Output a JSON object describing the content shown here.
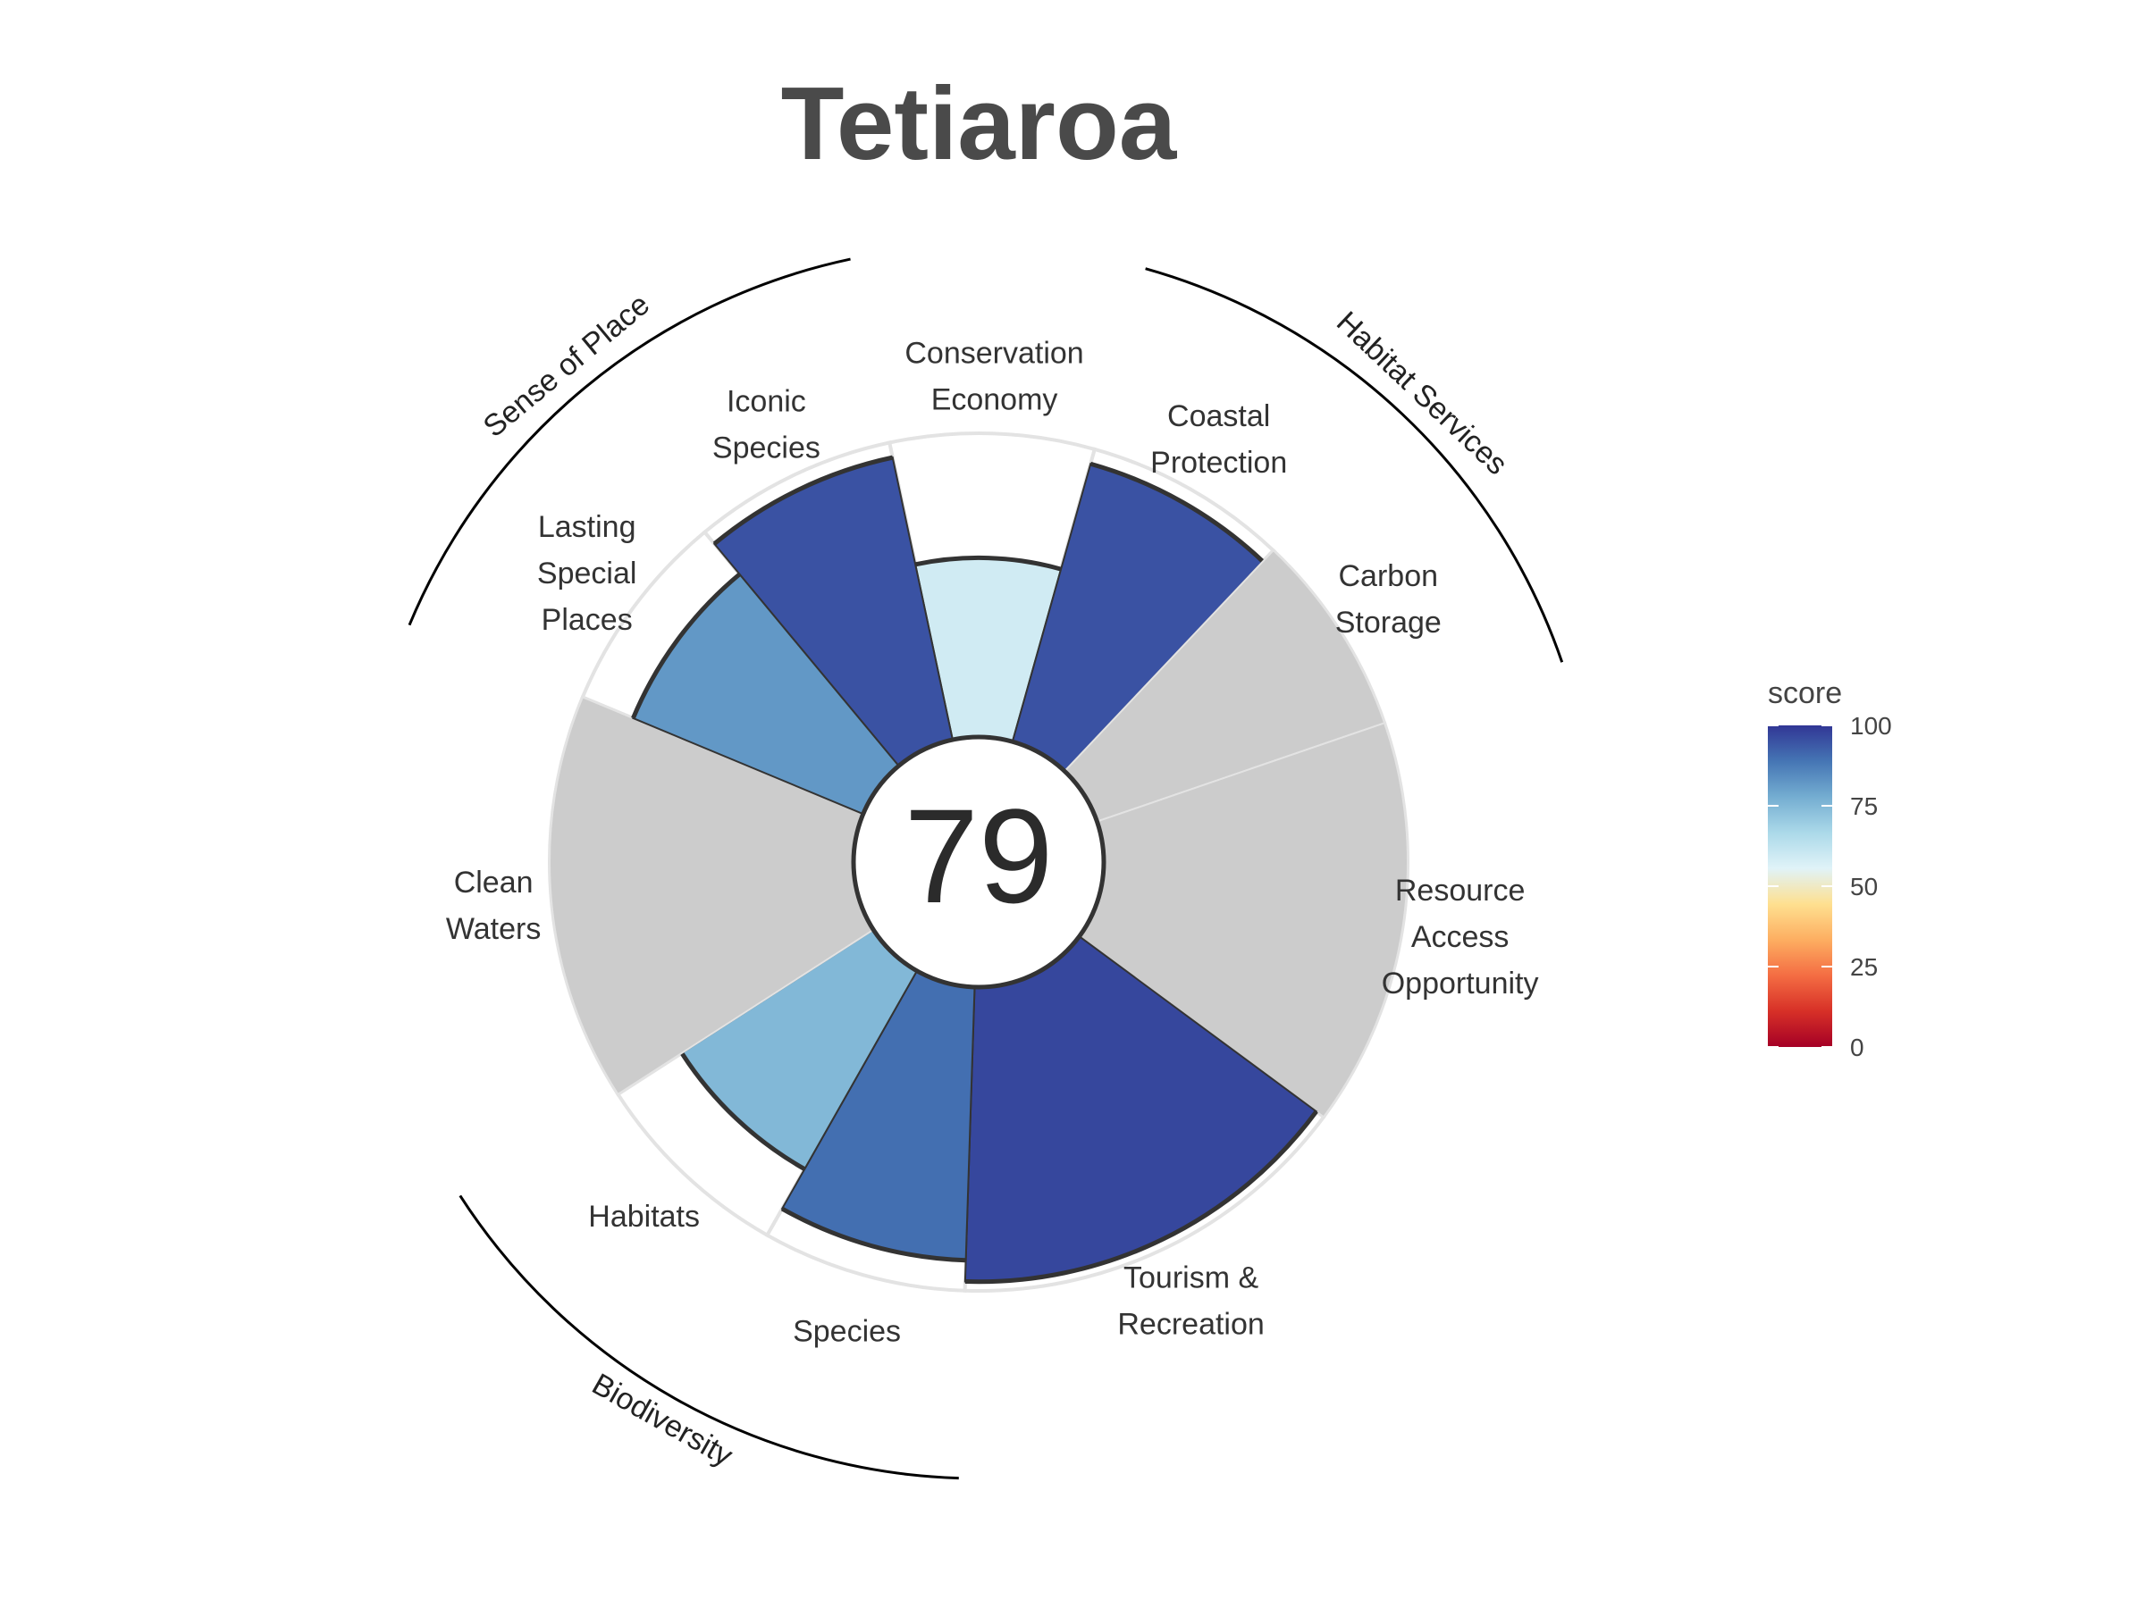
{
  "chart_data": {
    "type": "bar",
    "subtype": "flower-plot",
    "title": "Tetiaroa",
    "overall_score": "79",
    "categories": [
      {
        "label": "Conservation\nEconomy",
        "score": 59,
        "weight": 1
      },
      {
        "label": "Coastal\nProtection",
        "score": 95,
        "weight": 1
      },
      {
        "label": "Carbon\nStorage",
        "score": null,
        "weight": 1
      },
      {
        "label": "Resource\nAccess\nOpportunity",
        "score": null,
        "weight": 2
      },
      {
        "label": "Tourism &\nRecreation",
        "score": 97,
        "weight": 2
      },
      {
        "label": "Species",
        "score": 90,
        "weight": 1
      },
      {
        "label": "Habitats",
        "score": 75,
        "weight": 1
      },
      {
        "label": "Clean\nWaters",
        "score": null,
        "weight": 2
      },
      {
        "label": "Lasting\nSpecial\nPlaces",
        "score": 82,
        "weight": 1
      },
      {
        "label": "Iconic\nSpecies",
        "score": 95,
        "weight": 1
      }
    ],
    "groups": [
      {
        "label": "Sense of Place"
      },
      {
        "label": "Habitat Services"
      },
      {
        "label": "Biodiversity"
      }
    ],
    "ylim": [
      0,
      100
    ],
    "missing_color": "#cccccc",
    "legend": {
      "title": "score",
      "ticks": [
        "100",
        "75",
        "50",
        "25",
        "0"
      ],
      "colors": [
        "#313695",
        "#4575b4",
        "#74add1",
        "#abd9e9",
        "#e0f3f8",
        "#fee090",
        "#fdae61",
        "#f46d43",
        "#d73027",
        "#a50026"
      ],
      "position": "right"
    }
  }
}
